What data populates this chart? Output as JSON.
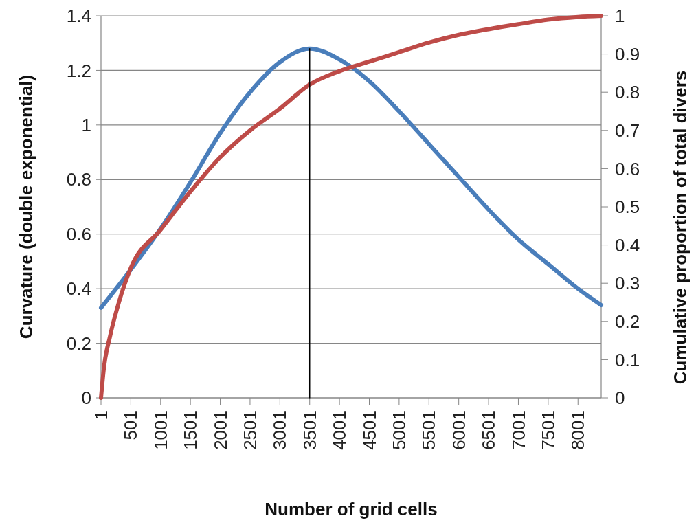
{
  "chart_data": {
    "type": "line",
    "xlabel": "Number of grid cells",
    "ylabel": "Curvature (double exponential)",
    "y2label": "Cumulative proportion of total divers",
    "xlim": [
      1,
      8390
    ],
    "xticks": [
      1,
      501,
      1001,
      1501,
      2001,
      2501,
      3001,
      3501,
      4001,
      4501,
      5001,
      5501,
      6001,
      6501,
      7001,
      7501,
      8001
    ],
    "ylim": [
      0,
      1.4
    ],
    "yticks": [
      0,
      0.2,
      0.4,
      0.6,
      0.8,
      1,
      1.2,
      1.4
    ],
    "y2lim": [
      0,
      1
    ],
    "y2ticks": [
      0,
      0.1,
      0.2,
      0.3,
      0.4,
      0.5,
      0.6,
      0.7,
      0.8,
      0.9,
      1
    ],
    "grid": "y",
    "marker": "none",
    "line_style": "solid",
    "series": [
      {
        "color": "#4a7ebb",
        "x": [
          1,
          501,
          1001,
          1501,
          2001,
          2501,
          3001,
          3501,
          4001,
          4501,
          5001,
          5501,
          6001,
          6501,
          7001,
          7501,
          8001,
          8390
        ],
        "values": [
          0.33,
          0.47,
          0.62,
          0.79,
          0.97,
          1.12,
          1.23,
          1.28,
          1.24,
          1.16,
          1.05,
          0.93,
          0.81,
          0.69,
          0.58,
          0.49,
          0.4,
          0.34
        ]
      },
      {
        "color": "#be4b48",
        "axis": "y2",
        "x": [
          1,
          51,
          151,
          301,
          501,
          1001,
          1501,
          2001,
          2501,
          3001,
          3501,
          4001,
          4501,
          5001,
          5501,
          6001,
          6501,
          7001,
          7501,
          8001,
          8390
        ],
        "values": [
          0,
          0.08,
          0.16,
          0.25,
          0.34,
          0.44,
          0.54,
          0.63,
          0.7,
          0.757,
          0.82,
          0.855,
          0.88,
          0.905,
          0.93,
          0.95,
          0.965,
          0.978,
          0.99,
          0.997,
          1
        ]
      },
      {
        "color": "#000000",
        "type": "line",
        "x": [
          3501,
          3501
        ],
        "values": [
          0,
          1.28
        ]
      }
    ]
  }
}
